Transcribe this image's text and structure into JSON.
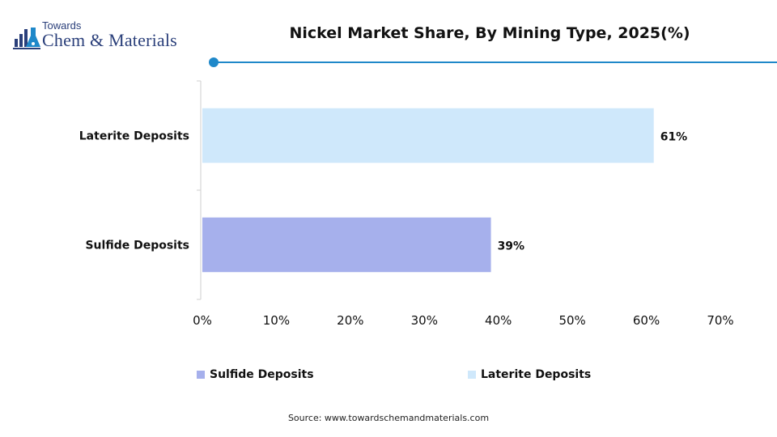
{
  "brand": {
    "small": "Towards",
    "big": "Chem & Materials"
  },
  "chart_data": {
    "type": "bar",
    "orientation": "horizontal",
    "title": "Nickel Market Share, By Mining Type, 2025(%)",
    "categories": [
      "Laterite Deposits",
      "Sulfide Deposits"
    ],
    "values": [
      61,
      39
    ],
    "value_labels": [
      "61%",
      "39%"
    ],
    "colors": [
      "#cfe8fb",
      "#a6b0ec"
    ],
    "xlim": [
      0,
      70
    ],
    "xticks": [
      "0%",
      "10%",
      "20%",
      "30%",
      "40%",
      "50%",
      "60%",
      "70%"
    ],
    "grid": false,
    "legend": {
      "placement": "bottom",
      "entries": [
        {
          "name": "Sulfide Deposits",
          "color": "#a6b0ec"
        },
        {
          "name": "Laterite Deposits",
          "color": "#cfe8fb"
        }
      ]
    }
  },
  "source": "Source: www.towardschemandmaterials.com"
}
